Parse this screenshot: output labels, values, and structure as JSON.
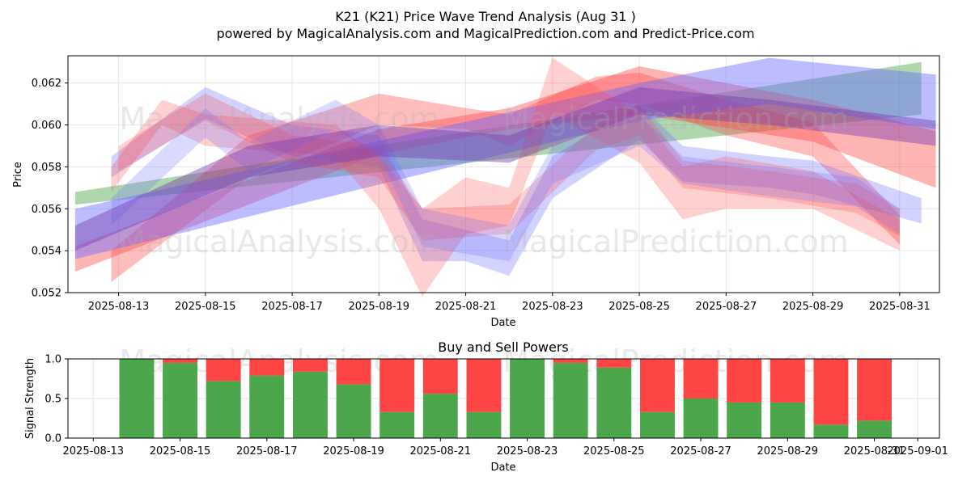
{
  "title_line1": "K21 (K21) Price Wave Trend Analysis (Aug 31 )",
  "title_line2": "powered by MagicalAnalysis.com and MagicalPrediction.com and Predict-Price.com",
  "watermarks": [
    "MagicalAnalysis.com",
    "MagicalPrediction.com"
  ],
  "colors": {
    "green": "#4ca64c",
    "red": "#ff4444",
    "blue": "#6a6aff",
    "grid": "#e6e6e6"
  },
  "chart_data": [
    {
      "type": "area",
      "title": "",
      "xlabel": "Date",
      "ylabel": "Price",
      "x_range": [
        "2025-08-11T20:00",
        "2025-08-31T22:00"
      ],
      "ylim": [
        0.052,
        0.0633
      ],
      "x_ticks": [
        "2025-08-13",
        "2025-08-15",
        "2025-08-17",
        "2025-08-19",
        "2025-08-21",
        "2025-08-23",
        "2025-08-25",
        "2025-08-27",
        "2025-08-29",
        "2025-08-31"
      ],
      "y_ticks": [
        "0.052",
        "0.054",
        "0.056",
        "0.058",
        "0.060",
        "0.062"
      ],
      "grid": true,
      "series": [
        {
          "color": "#4ca64c",
          "opacity": 0.45,
          "x": [
            "2025-08-12",
            "2025-08-31T12:00"
          ],
          "upper": [
            0.0568,
            0.063
          ],
          "lower": [
            0.0562,
            0.0605
          ]
        },
        {
          "color": "#ff4444",
          "opacity": 0.4,
          "x": [
            "2025-08-12",
            "2025-08-19",
            "2025-08-22",
            "2025-08-25",
            "2025-08-29",
            "2025-08-31T20:00"
          ],
          "upper": [
            0.0542,
            0.0598,
            0.0608,
            0.0628,
            0.0612,
            0.0597
          ],
          "lower": [
            0.053,
            0.0586,
            0.0598,
            0.0605,
            0.0592,
            0.057
          ]
        },
        {
          "color": "#ff4444",
          "opacity": 0.35,
          "x": [
            "2025-08-12T20:00",
            "2025-08-16",
            "2025-08-19",
            "2025-08-21",
            "2025-08-22",
            "2025-08-24",
            "2025-08-25",
            "2025-08-27",
            "2025-08-29",
            "2025-08-31"
          ],
          "upper": [
            0.054,
            0.0595,
            0.0615,
            0.0608,
            0.0605,
            0.0623,
            0.0625,
            0.0612,
            0.0601,
            0.0557
          ],
          "lower": [
            0.0525,
            0.0575,
            0.06,
            0.0598,
            0.059,
            0.0612,
            0.061,
            0.0595,
            0.0585,
            0.0543
          ]
        },
        {
          "color": "#6a6aff",
          "opacity": 0.45,
          "x": [
            "2025-08-12",
            "2025-08-25",
            "2025-08-28",
            "2025-08-31T20:00"
          ],
          "upper": [
            0.056,
            0.062,
            0.0632,
            0.0624
          ],
          "lower": [
            0.0536,
            0.0602,
            0.061,
            0.0598
          ]
        },
        {
          "color": "#6a6aff",
          "opacity": 0.3,
          "x": [
            "2025-08-12T20:00",
            "2025-08-15",
            "2025-08-17",
            "2025-08-19",
            "2025-08-20",
            "2025-08-21",
            "2025-08-22",
            "2025-08-23",
            "2025-08-25",
            "2025-08-26",
            "2025-08-28",
            "2025-08-29",
            "2025-08-31T12:00"
          ],
          "upper": [
            0.0585,
            0.0618,
            0.06,
            0.0595,
            0.0555,
            0.055,
            0.0545,
            0.0585,
            0.061,
            0.059,
            0.0585,
            0.0583,
            0.0565
          ],
          "lower": [
            0.0575,
            0.0603,
            0.0585,
            0.058,
            0.0535,
            0.0535,
            0.0528,
            0.0565,
            0.0593,
            0.0573,
            0.057,
            0.0567,
            0.0553
          ]
        },
        {
          "color": "#ff4444",
          "opacity": 0.25,
          "x": [
            "2025-08-12T20:00",
            "2025-08-14",
            "2025-08-15",
            "2025-08-18",
            "2025-08-19",
            "2025-08-20",
            "2025-08-21",
            "2025-08-22",
            "2025-08-23",
            "2025-08-25",
            "2025-08-26",
            "2025-08-27",
            "2025-08-29",
            "2025-08-31"
          ],
          "upper": [
            0.058,
            0.0612,
            0.0605,
            0.06,
            0.0585,
            0.056,
            0.0575,
            0.057,
            0.0632,
            0.0605,
            0.058,
            0.0585,
            0.0578,
            0.0555
          ],
          "lower": [
            0.0568,
            0.06,
            0.059,
            0.0585,
            0.056,
            0.0518,
            0.0548,
            0.0552,
            0.0605,
            0.0582,
            0.0555,
            0.056,
            0.056,
            0.054
          ]
        },
        {
          "color": "#ff4444",
          "opacity": 0.25,
          "x": [
            "2025-08-13",
            "2025-08-15",
            "2025-08-17",
            "2025-08-19",
            "2025-08-20",
            "2025-08-22",
            "2025-08-24",
            "2025-08-25",
            "2025-08-26",
            "2025-08-28",
            "2025-08-30",
            "2025-08-31"
          ],
          "upper": [
            0.059,
            0.0615,
            0.0595,
            0.059,
            0.056,
            0.0562,
            0.06,
            0.061,
            0.0583,
            0.0578,
            0.0572,
            0.056
          ],
          "lower": [
            0.0578,
            0.0602,
            0.0582,
            0.0575,
            0.0545,
            0.0548,
            0.0588,
            0.0595,
            0.057,
            0.0565,
            0.0558,
            0.0547
          ]
        },
        {
          "color": "#6a6aff",
          "opacity": 0.25,
          "x": [
            "2025-08-12T20:00",
            "2025-08-15",
            "2025-08-16",
            "2025-08-18",
            "2025-08-19",
            "2025-08-20",
            "2025-08-22",
            "2025-08-23",
            "2025-08-25",
            "2025-08-26",
            "2025-08-28",
            "2025-08-30",
            "2025-08-31"
          ],
          "upper": [
            0.0565,
            0.0608,
            0.0592,
            0.0612,
            0.06,
            0.056,
            0.0552,
            0.059,
            0.0605,
            0.0585,
            0.058,
            0.0575,
            0.056
          ],
          "lower": [
            0.0552,
            0.0594,
            0.0578,
            0.0598,
            0.0585,
            0.0542,
            0.0535,
            0.0572,
            0.059,
            0.0572,
            0.0566,
            0.0561,
            0.0548
          ]
        },
        {
          "color": "#7a3fb0",
          "opacity": 0.45,
          "x": [
            "2025-08-12",
            "2025-08-16",
            "2025-08-19",
            "2025-08-22",
            "2025-08-25",
            "2025-08-28",
            "2025-08-31T20:00"
          ],
          "upper": [
            0.0552,
            0.059,
            0.06,
            0.0595,
            0.0618,
            0.0612,
            0.0602
          ],
          "lower": [
            0.054,
            0.0575,
            0.0585,
            0.0582,
            0.0605,
            0.06,
            0.059
          ]
        }
      ]
    },
    {
      "type": "bar",
      "title": "Buy and Sell Powers",
      "xlabel": "Date",
      "ylabel": "Signal Strength",
      "x_range": [
        "2025-08-12T10:00",
        "2025-09-01T12:00"
      ],
      "ylim": [
        0,
        1
      ],
      "x_ticks": [
        "2025-08-13",
        "2025-08-15",
        "2025-08-17",
        "2025-08-19",
        "2025-08-21",
        "2025-08-23",
        "2025-08-25",
        "2025-08-27",
        "2025-08-29",
        "2025-08-31",
        "2025-09-01"
      ],
      "y_ticks": [
        "0.0",
        "0.5",
        "1.0"
      ],
      "grid": true,
      "categories": [
        "2025-08-14",
        "2025-08-15",
        "2025-08-16",
        "2025-08-17",
        "2025-08-18",
        "2025-08-19",
        "2025-08-20",
        "2025-08-21",
        "2025-08-22",
        "2025-08-23",
        "2025-08-24",
        "2025-08-25",
        "2025-08-26",
        "2025-08-27",
        "2025-08-28",
        "2025-08-29",
        "2025-08-30",
        "2025-08-31"
      ],
      "series": [
        {
          "color": "#4ca64c",
          "values": [
            1.0,
            0.95,
            0.72,
            0.79,
            0.84,
            0.68,
            0.33,
            0.56,
            0.33,
            1.0,
            0.95,
            0.89,
            0.33,
            0.5,
            0.45,
            0.45,
            0.17,
            0.22
          ]
        },
        {
          "color": "#ff4444",
          "values": [
            0.0,
            0.05,
            0.28,
            0.21,
            0.16,
            0.32,
            0.67,
            0.44,
            0.67,
            0.0,
            0.05,
            0.11,
            0.67,
            0.5,
            0.55,
            0.55,
            0.83,
            0.78
          ]
        }
      ]
    }
  ]
}
